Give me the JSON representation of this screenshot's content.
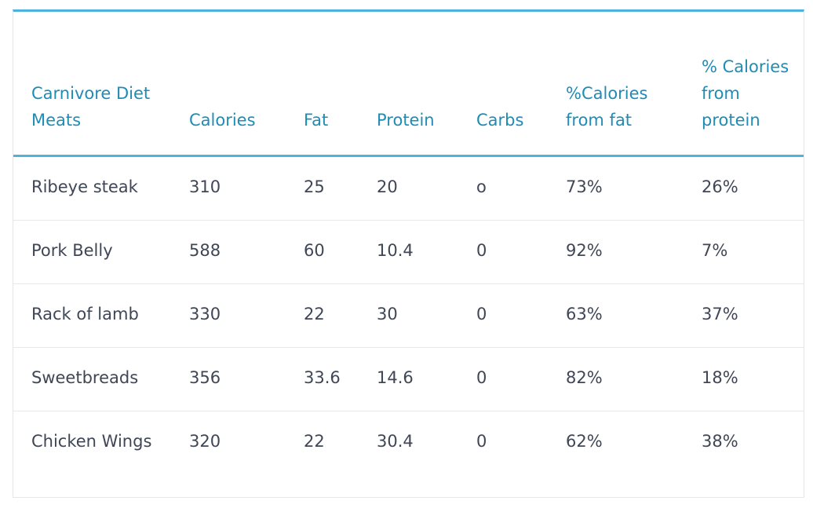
{
  "table": {
    "headers": [
      "Carnivore Diet Meats",
      "Calories",
      "Fat",
      "Protein",
      "Carbs",
      "%Calories from fat",
      "% Calories from protein"
    ],
    "rows": [
      [
        "Ribeye steak",
        "310",
        "25",
        "20",
        "o",
        "73%",
        "26%"
      ],
      [
        "Pork Belly",
        "588",
        "60",
        "10.4",
        "0",
        "92%",
        "7%"
      ],
      [
        "Rack of lamb",
        "330",
        "22",
        "30",
        "0",
        "63%",
        "37%"
      ],
      [
        "Sweetbreads",
        "356",
        "33.6",
        "14.6",
        "0",
        "82%",
        "18%"
      ],
      [
        "Chicken Wings",
        "320",
        "22",
        "30.4",
        "0",
        "62%",
        "38%"
      ]
    ],
    "colors": {
      "accent": "#4db3dd",
      "header_text": "#1f8cb6",
      "body_text": "#3f4656",
      "row_divider": "#e8e8e8"
    }
  }
}
